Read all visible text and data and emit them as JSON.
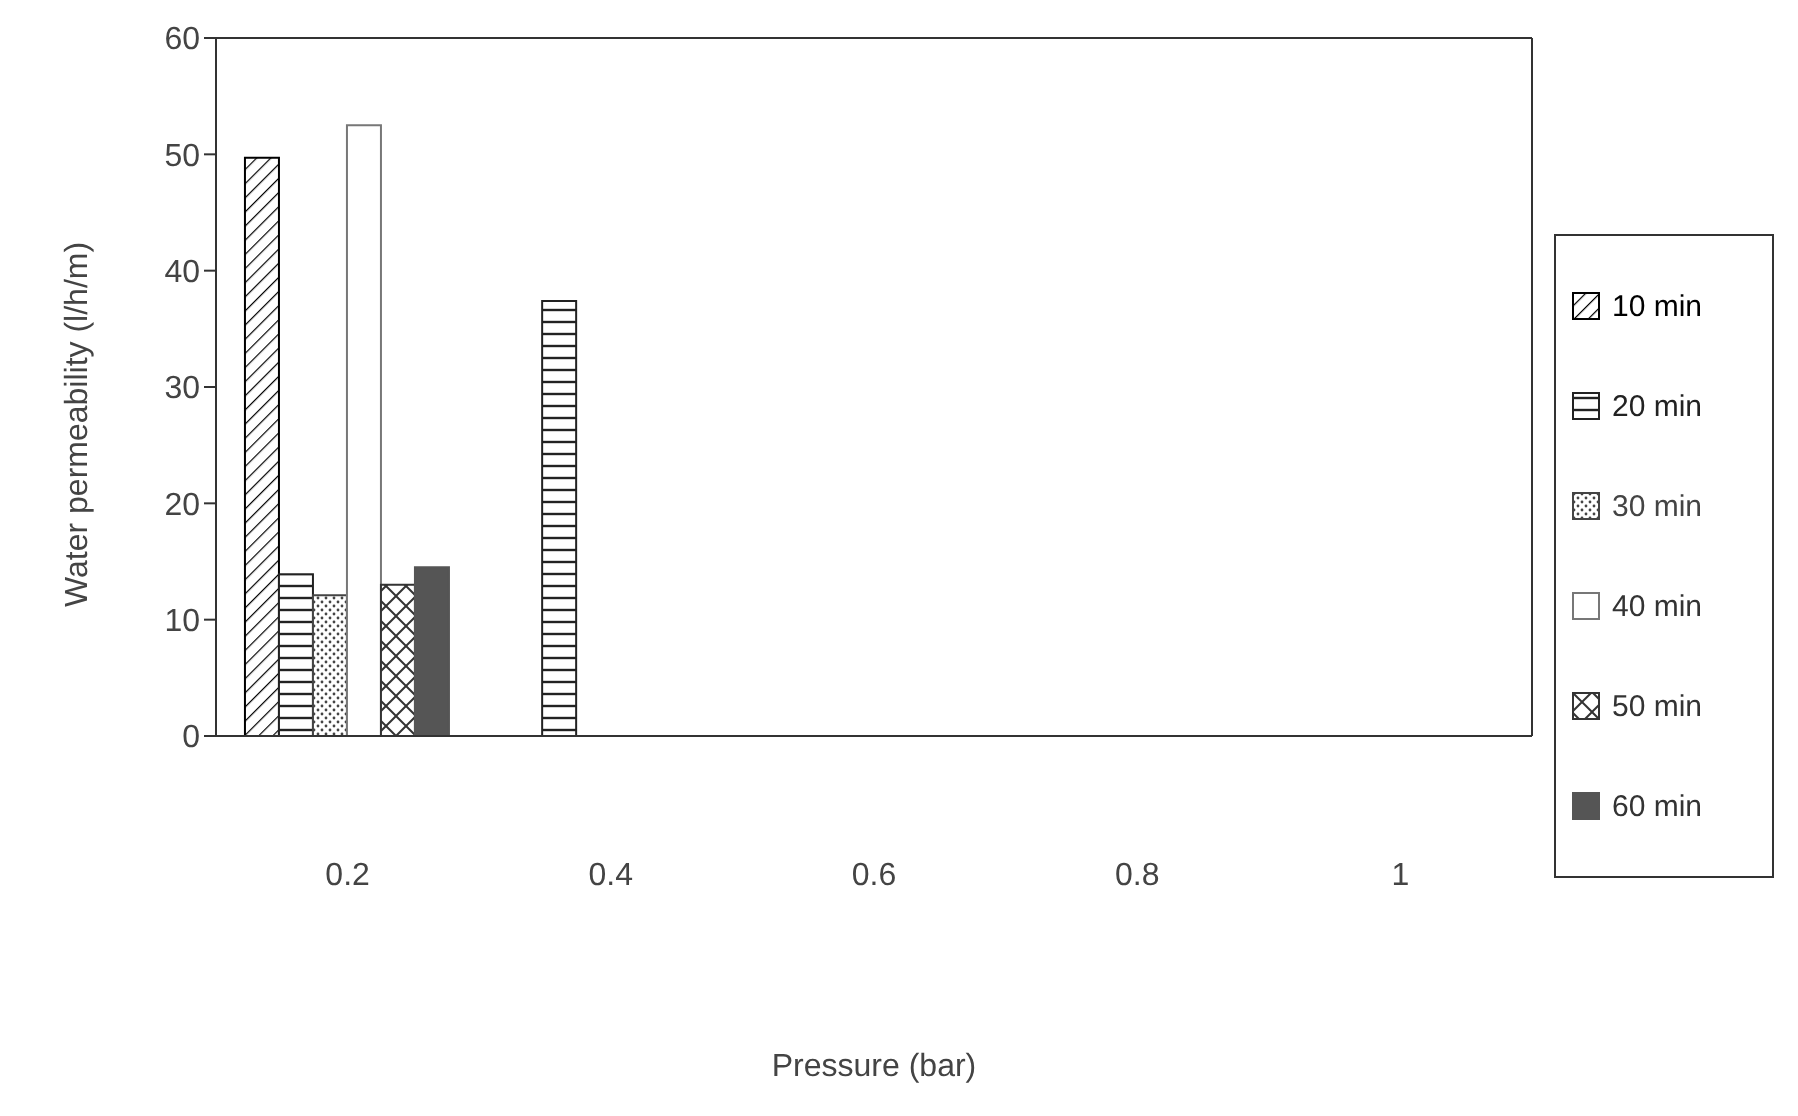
{
  "chart_data": {
    "type": "bar",
    "xlabel": "Pressure (bar)",
    "ylabel": "Water permeability (l/h/m)",
    "categories": [
      "0.2",
      "0.4",
      "0.6",
      "0.8",
      "1"
    ],
    "series": [
      {
        "name": "10 min",
        "color": "#000000",
        "values": [
          49.7,
          null,
          null,
          null,
          null
        ]
      },
      {
        "name": "20 min",
        "color": "#222222",
        "values": [
          13.9,
          37.4,
          null,
          null,
          null
        ]
      },
      {
        "name": "30 min",
        "color": "#444444",
        "values": [
          12.1,
          null,
          null,
          null,
          null
        ]
      },
      {
        "name": "40 min",
        "color": "#ffffff",
        "values": [
          52.5,
          null,
          null,
          null,
          null
        ]
      },
      {
        "name": "50 min",
        "color": "#333333",
        "values": [
          13,
          null,
          null,
          null,
          null
        ]
      },
      {
        "name": "60 min",
        "color": "#555555",
        "values": [
          14.5,
          null,
          null,
          null,
          null
        ]
      }
    ],
    "ylim": [
      0,
      60
    ],
    "yticks": [
      0,
      10,
      20,
      30,
      40,
      50,
      60
    ],
    "grid": false,
    "legend": "right"
  }
}
